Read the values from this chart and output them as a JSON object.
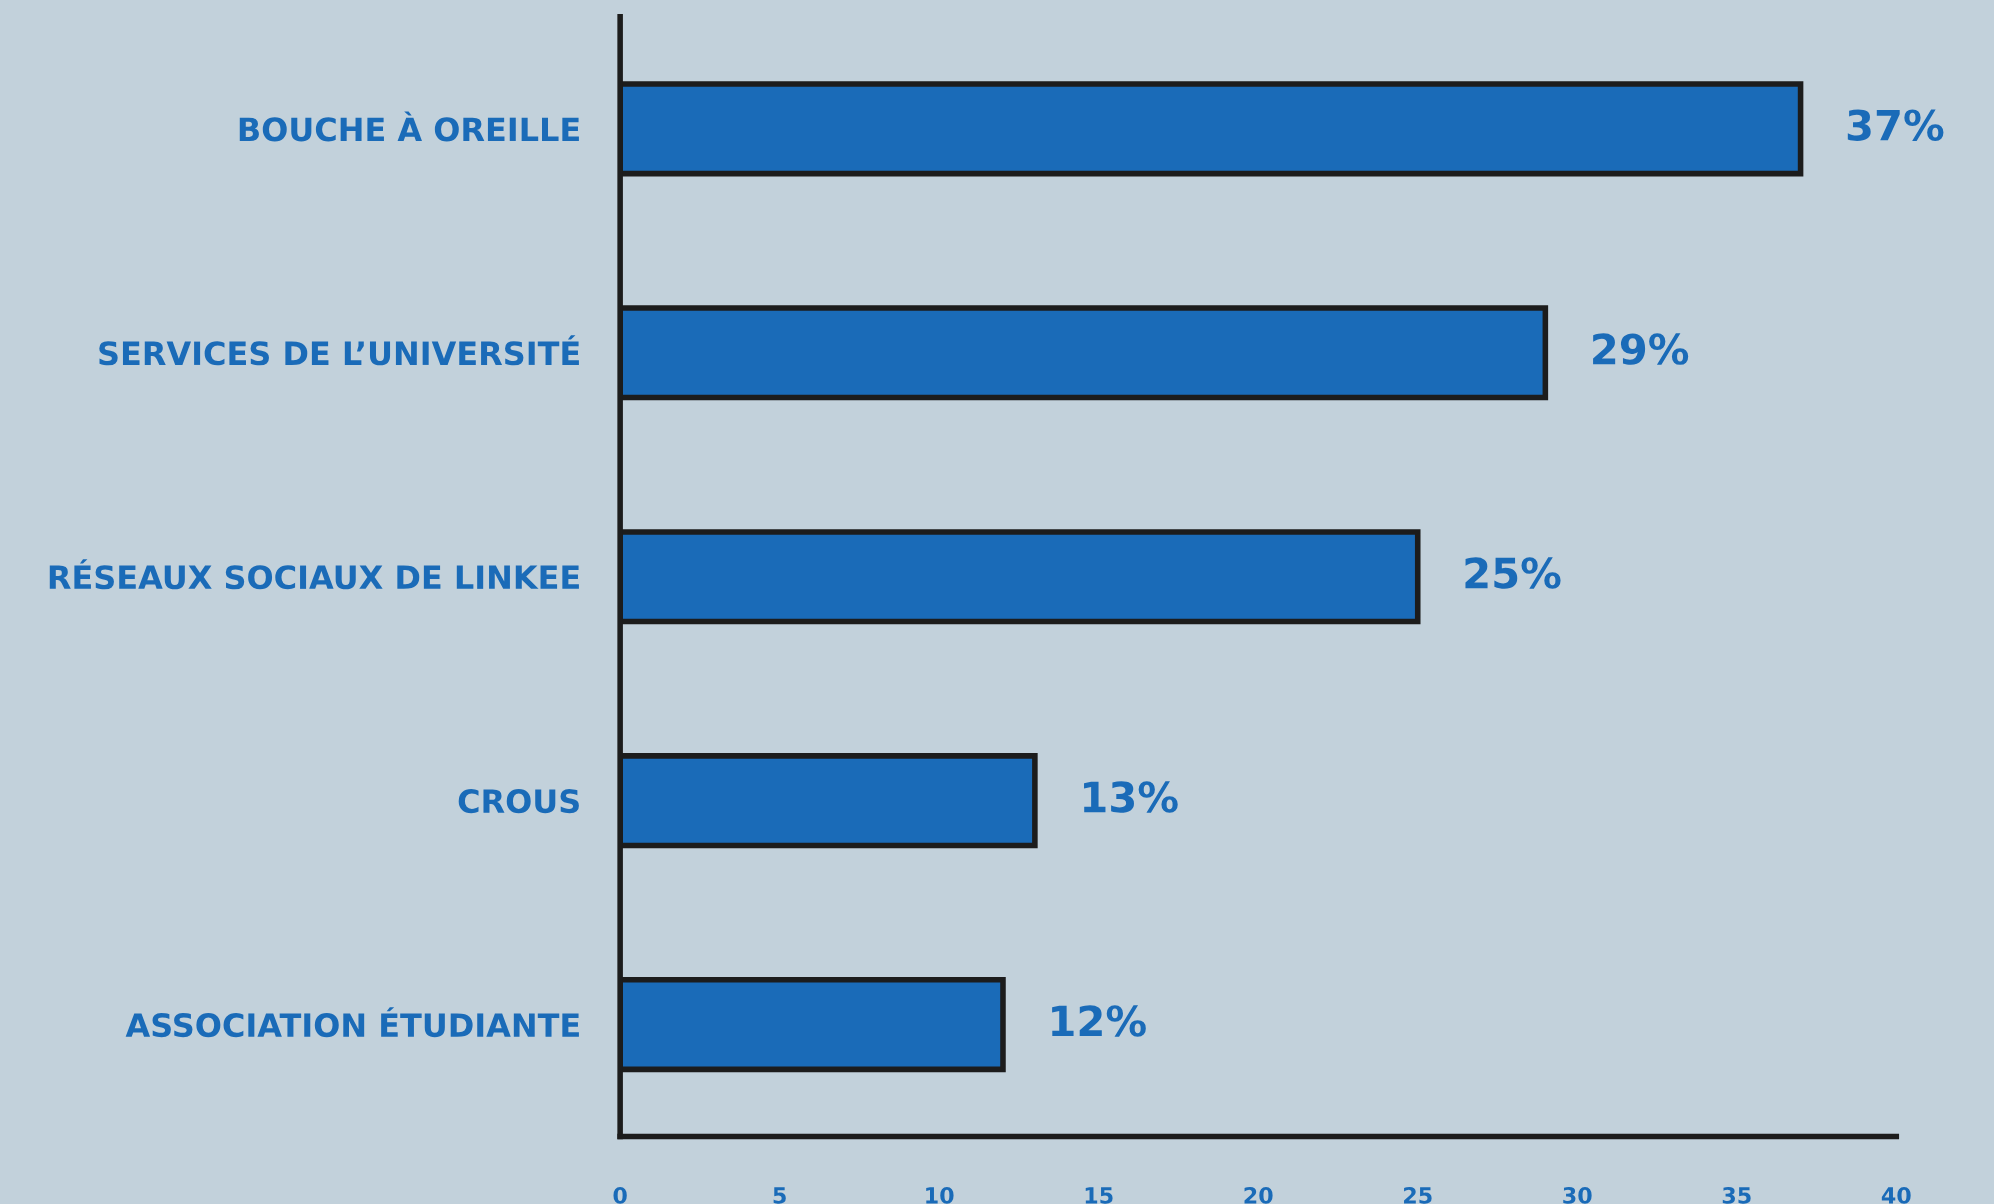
{
  "chart_data": {
    "type": "bar",
    "orientation": "horizontal",
    "categories": [
      "BOUCHE À OREILLE",
      "SERVICES DE L’UNIVERSITÉ",
      "RÉSEAUX SOCIAUX DE LINKEE",
      "CROUS",
      "ASSOCIATION ÉTUDIANTE"
    ],
    "values": [
      37,
      29,
      25,
      13,
      12
    ],
    "value_labels": [
      "37%",
      "29%",
      "25%",
      "13%",
      "12%"
    ],
    "color": "#1a6bb8",
    "xlim": [
      0,
      40
    ],
    "xticks": [
      0,
      5,
      10,
      15,
      20,
      25,
      30,
      35,
      40
    ],
    "grid": false,
    "legend": false
  }
}
